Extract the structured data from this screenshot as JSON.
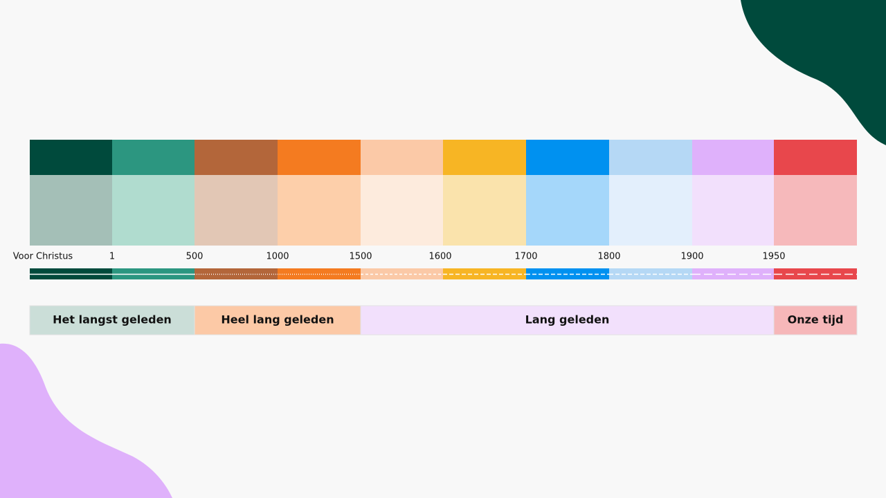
{
  "timeline": {
    "labels": [
      "Voor Christus",
      "1",
      "500",
      "1000",
      "1500",
      "1600",
      "1700",
      "1800",
      "1900",
      "1950"
    ]
  },
  "eras": [
    {
      "label": "Het langst geleden"
    },
    {
      "label": "Heel lang geleden"
    },
    {
      "label": "Lang geleden"
    },
    {
      "label": "Onze tijd"
    }
  ]
}
